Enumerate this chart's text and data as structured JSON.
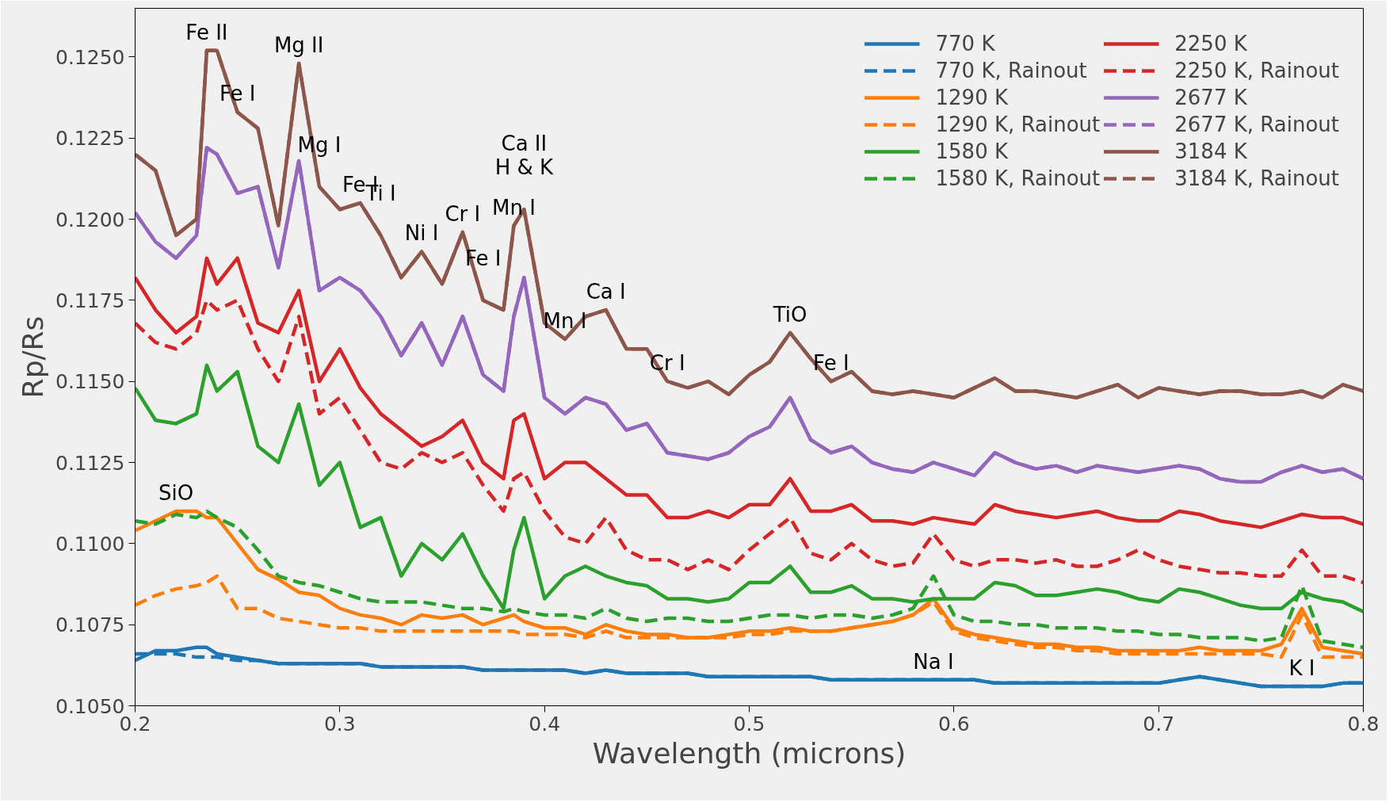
{
  "chart_data": {
    "type": "line",
    "xlabel": "Wavelength (microns)",
    "ylabel": "Rp/Rs",
    "xlim": [
      0.2,
      0.8
    ],
    "xticks": [
      0.2,
      0.3,
      0.4,
      0.5,
      0.6,
      0.7,
      0.8
    ],
    "ylim": [
      0.105,
      0.1265
    ],
    "yticks": [
      {
        "value": 0.105,
        "label": "0.1050"
      },
      {
        "value": 0.1075,
        "label": "0.1075"
      },
      {
        "value": 0.11,
        "label": "0.1100"
      },
      {
        "value": 0.1125,
        "label": "0.1125"
      },
      {
        "value": 0.115,
        "label": "0.1150"
      },
      {
        "value": 0.1175,
        "label": "0.1175"
      },
      {
        "value": 0.12,
        "label": "0.1200"
      },
      {
        "value": 0.1225,
        "label": "0.1225"
      },
      {
        "value": 0.125,
        "label": "0.1250"
      }
    ],
    "grid": false,
    "legend": "top right",
    "line_style": "solid",
    "x": [
      0.2,
      0.21,
      0.22,
      0.23,
      0.235,
      0.24,
      0.25,
      0.26,
      0.27,
      0.28,
      0.29,
      0.3,
      0.31,
      0.32,
      0.33,
      0.34,
      0.35,
      0.36,
      0.37,
      0.38,
      0.385,
      0.39,
      0.4,
      0.41,
      0.42,
      0.43,
      0.44,
      0.45,
      0.46,
      0.47,
      0.48,
      0.49,
      0.5,
      0.51,
      0.52,
      0.53,
      0.54,
      0.55,
      0.56,
      0.57,
      0.58,
      0.59,
      0.6,
      0.61,
      0.62,
      0.63,
      0.64,
      0.65,
      0.66,
      0.67,
      0.68,
      0.69,
      0.7,
      0.71,
      0.72,
      0.73,
      0.74,
      0.75,
      0.76,
      0.77,
      0.78,
      0.79,
      0.8
    ],
    "series": [
      {
        "name": "770 K",
        "color": "#1f77b4",
        "values": [
          0.1064,
          0.1067,
          0.1067,
          0.1068,
          0.1068,
          0.1066,
          0.1065,
          0.1064,
          0.1063,
          0.1063,
          0.1063,
          0.1063,
          0.1063,
          0.1062,
          0.1062,
          0.1062,
          0.1062,
          0.1062,
          0.1061,
          0.1061,
          0.1061,
          0.1061,
          0.1061,
          0.1061,
          0.106,
          0.1061,
          0.106,
          0.106,
          0.106,
          0.106,
          0.1059,
          0.1059,
          0.1059,
          0.1059,
          0.1059,
          0.1059,
          0.1058,
          0.1058,
          0.1058,
          0.1058,
          0.1058,
          0.1058,
          0.1058,
          0.1058,
          0.1057,
          0.1057,
          0.1057,
          0.1057,
          0.1057,
          0.1057,
          0.1057,
          0.1057,
          0.1057,
          0.1058,
          0.1059,
          0.1058,
          0.1057,
          0.1056,
          0.1056,
          0.1056,
          0.1056,
          0.1057,
          0.1057
        ]
      },
      {
        "name": "770 K, Rainout",
        "color": "#1f77b4",
        "line_style": "dashed",
        "values": [
          0.1066,
          0.1066,
          0.1066,
          0.1065,
          0.1065,
          0.1065,
          0.1064,
          0.1064,
          0.1063,
          0.1063,
          0.1063,
          0.1063,
          0.1063,
          0.1062,
          0.1062,
          0.1062,
          0.1062,
          0.1062,
          0.1061,
          0.1061,
          0.1061,
          0.1061,
          0.1061,
          0.1061,
          0.106,
          0.1061,
          0.106,
          0.106,
          0.106,
          0.106,
          0.1059,
          0.1059,
          0.1059,
          0.1059,
          0.1059,
          0.1059,
          0.1058,
          0.1058,
          0.1058,
          0.1058,
          0.1058,
          0.1058,
          0.1058,
          0.1058,
          0.1057,
          0.1057,
          0.1057,
          0.1057,
          0.1057,
          0.1057,
          0.1057,
          0.1057,
          0.1057,
          0.1058,
          0.1059,
          0.1058,
          0.1057,
          0.1056,
          0.1056,
          0.1056,
          0.1056,
          0.1057,
          0.1057
        ]
      },
      {
        "name": "1290 K",
        "color": "#ff7f0e",
        "values": [
          0.1104,
          0.1107,
          0.111,
          0.111,
          0.1108,
          0.1108,
          0.11,
          0.1092,
          0.1089,
          0.1085,
          0.1084,
          0.108,
          0.1078,
          0.1077,
          0.1075,
          0.1078,
          0.1077,
          0.1078,
          0.1075,
          0.1077,
          0.1078,
          0.1076,
          0.1074,
          0.1074,
          0.1072,
          0.1075,
          0.1073,
          0.1072,
          0.1072,
          0.1071,
          0.1071,
          0.1072,
          0.1073,
          0.1073,
          0.1074,
          0.1073,
          0.1073,
          0.1074,
          0.1075,
          0.1076,
          0.1078,
          0.1083,
          0.1074,
          0.1072,
          0.1071,
          0.107,
          0.1069,
          0.1069,
          0.1068,
          0.1068,
          0.1067,
          0.1067,
          0.1067,
          0.1067,
          0.1068,
          0.1067,
          0.1067,
          0.1067,
          0.1069,
          0.108,
          0.1068,
          0.1067,
          0.1066
        ]
      },
      {
        "name": "1290 K, Rainout",
        "color": "#ff7f0e",
        "line_style": "dashed",
        "values": [
          0.1081,
          0.1084,
          0.1086,
          0.1087,
          0.1088,
          0.109,
          0.108,
          0.108,
          0.1077,
          0.1076,
          0.1075,
          0.1074,
          0.1074,
          0.1073,
          0.1073,
          0.1073,
          0.1073,
          0.1073,
          0.1073,
          0.1073,
          0.1073,
          0.1072,
          0.1072,
          0.1072,
          0.1071,
          0.1073,
          0.1071,
          0.1071,
          0.1071,
          0.1071,
          0.1071,
          0.1071,
          0.1072,
          0.1072,
          0.1073,
          0.1073,
          0.1073,
          0.1074,
          0.1075,
          0.1076,
          0.1078,
          0.1082,
          0.1073,
          0.1071,
          0.107,
          0.1069,
          0.1068,
          0.1068,
          0.1067,
          0.1067,
          0.1066,
          0.1066,
          0.1066,
          0.1066,
          0.1066,
          0.1066,
          0.1066,
          0.1066,
          0.1065,
          0.1078,
          0.1065,
          0.1065,
          0.1065
        ]
      },
      {
        "name": "1580 K",
        "color": "#2ca02c",
        "values": [
          0.1148,
          0.1138,
          0.1137,
          0.114,
          0.1155,
          0.1147,
          0.1153,
          0.113,
          0.1125,
          0.1143,
          0.1118,
          0.1125,
          0.1105,
          0.1108,
          0.109,
          0.11,
          0.1095,
          0.1103,
          0.109,
          0.108,
          0.1098,
          0.1108,
          0.1083,
          0.109,
          0.1093,
          0.109,
          0.1088,
          0.1087,
          0.1083,
          0.1083,
          0.1082,
          0.1083,
          0.1088,
          0.1088,
          0.1093,
          0.1085,
          0.1085,
          0.1087,
          0.1083,
          0.1083,
          0.1082,
          0.1083,
          0.1083,
          0.1083,
          0.1088,
          0.1087,
          0.1084,
          0.1084,
          0.1085,
          0.1086,
          0.1085,
          0.1083,
          0.1082,
          0.1086,
          0.1085,
          0.1083,
          0.1081,
          0.108,
          0.108,
          0.1085,
          0.1083,
          0.1082,
          0.1079
        ]
      },
      {
        "name": "1580 K, Rainout",
        "color": "#2ca02c",
        "line_style": "dashed",
        "values": [
          0.1107,
          0.1106,
          0.1109,
          0.1108,
          0.111,
          0.1108,
          0.1105,
          0.1098,
          0.109,
          0.1088,
          0.1087,
          0.1085,
          0.1083,
          0.1082,
          0.1082,
          0.1082,
          0.1081,
          0.108,
          0.108,
          0.1079,
          0.108,
          0.1079,
          0.1078,
          0.1078,
          0.1077,
          0.108,
          0.1077,
          0.1076,
          0.1077,
          0.1077,
          0.1076,
          0.1076,
          0.1077,
          0.1078,
          0.1078,
          0.1077,
          0.1078,
          0.1078,
          0.1077,
          0.1078,
          0.108,
          0.109,
          0.1078,
          0.1076,
          0.1076,
          0.1075,
          0.1075,
          0.1074,
          0.1074,
          0.1074,
          0.1073,
          0.1073,
          0.1072,
          0.1072,
          0.1071,
          0.1071,
          0.1071,
          0.107,
          0.1071,
          0.1087,
          0.107,
          0.1069,
          0.1068
        ]
      },
      {
        "name": "2250 K",
        "color": "#d62728",
        "values": [
          0.1182,
          0.1172,
          0.1165,
          0.117,
          0.1188,
          0.118,
          0.1188,
          0.1168,
          0.1165,
          0.1178,
          0.115,
          0.116,
          0.1148,
          0.114,
          0.1135,
          0.113,
          0.1133,
          0.1138,
          0.1125,
          0.112,
          0.1138,
          0.114,
          0.112,
          0.1125,
          0.1125,
          0.112,
          0.1115,
          0.1115,
          0.1108,
          0.1108,
          0.111,
          0.1108,
          0.1112,
          0.1112,
          0.112,
          0.111,
          0.111,
          0.1112,
          0.1107,
          0.1107,
          0.1106,
          0.1108,
          0.1107,
          0.1106,
          0.1112,
          0.111,
          0.1109,
          0.1108,
          0.1109,
          0.111,
          0.1108,
          0.1107,
          0.1107,
          0.111,
          0.1109,
          0.1107,
          0.1106,
          0.1105,
          0.1107,
          0.1109,
          0.1108,
          0.1108,
          0.1106
        ]
      },
      {
        "name": "2250 K, Rainout",
        "color": "#d62728",
        "line_style": "dashed",
        "values": [
          0.1168,
          0.1162,
          0.116,
          0.1165,
          0.1175,
          0.1172,
          0.1175,
          0.116,
          0.115,
          0.117,
          0.114,
          0.1145,
          0.1135,
          0.1125,
          0.1123,
          0.1128,
          0.1125,
          0.1128,
          0.1118,
          0.111,
          0.112,
          0.1122,
          0.111,
          0.1102,
          0.11,
          0.1108,
          0.1098,
          0.1095,
          0.1095,
          0.1092,
          0.1095,
          0.1092,
          0.1098,
          0.1103,
          0.1108,
          0.1097,
          0.1095,
          0.11,
          0.1095,
          0.1093,
          0.1094,
          0.1103,
          0.1095,
          0.1093,
          0.1095,
          0.1095,
          0.1094,
          0.1095,
          0.1093,
          0.1093,
          0.1095,
          0.1098,
          0.1095,
          0.1093,
          0.1092,
          0.1091,
          0.1091,
          0.109,
          0.109,
          0.1098,
          0.109,
          0.109,
          0.1088
        ]
      },
      {
        "name": "2677 K",
        "color": "#9467bd",
        "values": [
          0.1202,
          0.1193,
          0.1188,
          0.1195,
          0.1222,
          0.122,
          0.1208,
          0.121,
          0.1185,
          0.1218,
          0.1178,
          0.1182,
          0.1178,
          0.117,
          0.1158,
          0.1168,
          0.1155,
          0.117,
          0.1152,
          0.1147,
          0.117,
          0.1182,
          0.1145,
          0.114,
          0.1145,
          0.1143,
          0.1135,
          0.1137,
          0.1128,
          0.1127,
          0.1126,
          0.1128,
          0.1133,
          0.1136,
          0.1145,
          0.1132,
          0.1128,
          0.113,
          0.1125,
          0.1123,
          0.1122,
          0.1125,
          0.1123,
          0.1121,
          0.1128,
          0.1125,
          0.1123,
          0.1124,
          0.1122,
          0.1124,
          0.1123,
          0.1122,
          0.1123,
          0.1124,
          0.1123,
          0.112,
          0.1119,
          0.1119,
          0.1122,
          0.1124,
          0.1122,
          0.1123,
          0.112
        ]
      },
      {
        "name": "2677 K, Rainout",
        "color": "#9467bd",
        "line_style": "dashed",
        "values": [
          0.1202,
          0.1193,
          0.1188,
          0.1195,
          0.1222,
          0.122,
          0.1208,
          0.121,
          0.1185,
          0.1218,
          0.1178,
          0.1182,
          0.1178,
          0.117,
          0.1158,
          0.1168,
          0.1155,
          0.117,
          0.1152,
          0.1147,
          0.117,
          0.1182,
          0.1145,
          0.114,
          0.1145,
          0.1143,
          0.1135,
          0.1137,
          0.1128,
          0.1127,
          0.1126,
          0.1128,
          0.1133,
          0.1136,
          0.1145,
          0.1132,
          0.1128,
          0.113,
          0.1125,
          0.1123,
          0.1122,
          0.1125,
          0.1123,
          0.1121,
          0.1128,
          0.1125,
          0.1123,
          0.1124,
          0.1122,
          0.1124,
          0.1123,
          0.1122,
          0.1123,
          0.1124,
          0.1123,
          0.112,
          0.1119,
          0.1119,
          0.1122,
          0.1124,
          0.1122,
          0.1123,
          0.112
        ]
      },
      {
        "name": "3184 K",
        "color": "#8c564b",
        "values": [
          0.122,
          0.1215,
          0.1195,
          0.12,
          0.1252,
          0.1252,
          0.1233,
          0.1228,
          0.1198,
          0.1248,
          0.121,
          0.1203,
          0.1205,
          0.1195,
          0.1182,
          0.119,
          0.118,
          0.1196,
          0.1175,
          0.1172,
          0.1198,
          0.1203,
          0.1168,
          0.1163,
          0.117,
          0.1172,
          0.116,
          0.116,
          0.115,
          0.1148,
          0.115,
          0.1146,
          0.1152,
          0.1156,
          0.1165,
          0.1157,
          0.115,
          0.1153,
          0.1147,
          0.1146,
          0.1147,
          0.1146,
          0.1145,
          0.1148,
          0.1151,
          0.1147,
          0.1147,
          0.1146,
          0.1145,
          0.1147,
          0.1149,
          0.1145,
          0.1148,
          0.1147,
          0.1146,
          0.1147,
          0.1147,
          0.1146,
          0.1146,
          0.1147,
          0.1145,
          0.1149,
          0.1147
        ]
      },
      {
        "name": "3184 K, Rainout",
        "color": "#8c564b",
        "line_style": "dashed",
        "values": [
          0.122,
          0.1215,
          0.1195,
          0.12,
          0.1252,
          0.1252,
          0.1233,
          0.1228,
          0.1198,
          0.1248,
          0.121,
          0.1203,
          0.1205,
          0.1195,
          0.1182,
          0.119,
          0.118,
          0.1196,
          0.1175,
          0.1172,
          0.1198,
          0.1203,
          0.1168,
          0.1163,
          0.117,
          0.1172,
          0.116,
          0.116,
          0.115,
          0.1148,
          0.115,
          0.1146,
          0.1152,
          0.1156,
          0.1165,
          0.1157,
          0.115,
          0.1153,
          0.1147,
          0.1146,
          0.1147,
          0.1146,
          0.1145,
          0.1148,
          0.1151,
          0.1147,
          0.1147,
          0.1146,
          0.1145,
          0.1147,
          0.1149,
          0.1145,
          0.1148,
          0.1147,
          0.1146,
          0.1147,
          0.1147,
          0.1146,
          0.1146,
          0.1147,
          0.1145,
          0.1149,
          0.1147
        ]
      }
    ],
    "annotations": [
      {
        "text": "Fe II",
        "x": 0.235,
        "y": 0.1252
      },
      {
        "text": "Fe I",
        "x": 0.25,
        "y": 0.1233
      },
      {
        "text": "Mg II",
        "x": 0.28,
        "y": 0.1248
      },
      {
        "text": "Mg I",
        "x": 0.29,
        "y": 0.121
      },
      {
        "text": "Fe I",
        "x": 0.31,
        "y": 0.1205
      },
      {
        "text": "Ti I",
        "x": 0.32,
        "y": 0.1195
      },
      {
        "text": "Ni I",
        "x": 0.34,
        "y": 0.119
      },
      {
        "text": "Cr I",
        "x": 0.36,
        "y": 0.1196
      },
      {
        "text": "Fe I",
        "x": 0.37,
        "y": 0.1175
      },
      {
        "text": "Mn I",
        "x": 0.385,
        "y": 0.1198
      },
      {
        "text": "H & K",
        "x": 0.39,
        "y": 0.1203
      },
      {
        "text": "Ca II",
        "x": 0.39,
        "y": 0.1203
      },
      {
        "text": "Mn I",
        "x": 0.41,
        "y": 0.1163
      },
      {
        "text": "Ca I",
        "x": 0.43,
        "y": 0.1172
      },
      {
        "text": "Cr I",
        "x": 0.46,
        "y": 0.115
      },
      {
        "text": "TiO",
        "x": 0.52,
        "y": 0.1165
      },
      {
        "text": "Fe I",
        "x": 0.54,
        "y": 0.115
      },
      {
        "text": "SiO",
        "x": 0.22,
        "y": 0.111
      },
      {
        "text": "Na I",
        "x": 0.59,
        "y": 0.1058
      },
      {
        "text": "K I",
        "x": 0.77,
        "y": 0.1056
      }
    ]
  }
}
